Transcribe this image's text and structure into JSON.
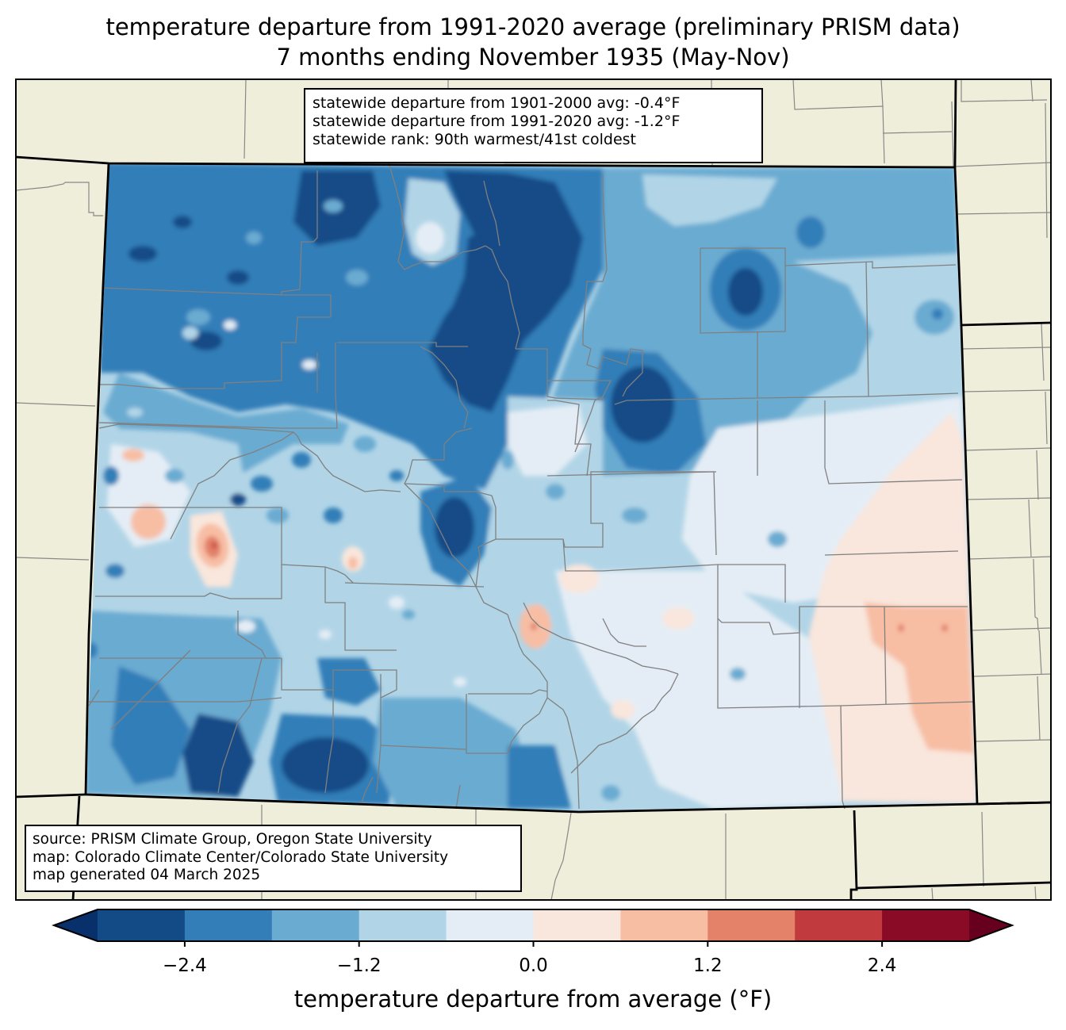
{
  "title": {
    "line1": "temperature departure from 1991-2020 average (preliminary PRISM data)",
    "line2": "7 months ending November 1935 (May-Nov)"
  },
  "stats_box": {
    "line1": "statewide departure from 1901-2000 avg: -0.4°F",
    "line2": "statewide departure from 1991-2020 avg: -1.2°F",
    "line3": "statewide rank: 90th warmest/41st coldest"
  },
  "credit_box": {
    "line1": "source: PRISM Climate Group, Oregon State University",
    "line2": "map: Colorado Climate Center/Colorado State University",
    "line3": "map generated 04 March 2025"
  },
  "colors": {
    "land_background": "#efeedb",
    "state_border": "#000000",
    "county_border": "#808080"
  },
  "chart_data": {
    "type": "heatmap",
    "subject": "Colorado temperature departure map",
    "title": "temperature departure from 1991-2020 average (preliminary PRISM data)",
    "subtitle": "7 months ending November 1935 (May-Nov)",
    "colorbar": {
      "label": "temperature departure from average (°F)",
      "bounds": [
        -3.0,
        -2.4,
        -1.8,
        -1.2,
        -0.6,
        0.0,
        0.6,
        1.2,
        1.8,
        2.4,
        3.0
      ],
      "colors": [
        "#134b87",
        "#337eb8",
        "#6aabd1",
        "#b1d5e7",
        "#e4edf5",
        "#f9e6dc",
        "#f7bea4",
        "#e38169",
        "#c13a3d",
        "#8a0b25"
      ],
      "extend_low_color": "#08306b",
      "extend_high_color": "#67001f",
      "ticks": [
        -2.4,
        -1.2,
        0.0,
        1.2,
        2.4
      ],
      "tick_labels": [
        "−2.4",
        "−1.2",
        "0.0",
        "1.2",
        "2.4"
      ],
      "extend": "both",
      "orientation": "horizontal",
      "placement": "bottom"
    },
    "regions": [
      {
        "name": "statewide background",
        "value": -1.0
      },
      {
        "name": "northwest",
        "value": -1.9
      },
      {
        "name": "northern mountains / park range",
        "value": -2.7
      },
      {
        "name": "north park light area",
        "value": -0.4
      },
      {
        "name": "northeast plains",
        "value": -1.5
      },
      {
        "name": "logan county cold core",
        "value": -2.7
      },
      {
        "name": "denver-metro east cold core",
        "value": -2.7
      },
      {
        "name": "sawatch / upper arkansas cold core",
        "value": -2.7
      },
      {
        "name": "san juan cold core",
        "value": -2.7
      },
      {
        "name": "west-central warm spots",
        "value": 1.0
      },
      {
        "name": "grand valley warm spot",
        "value": 2.0
      },
      {
        "name": "southeast plains warm area",
        "value": 0.9
      },
      {
        "name": "southeast warm peaks",
        "value": 1.3
      },
      {
        "name": "san luis valley / east plains neutral",
        "value": -0.2
      }
    ]
  }
}
